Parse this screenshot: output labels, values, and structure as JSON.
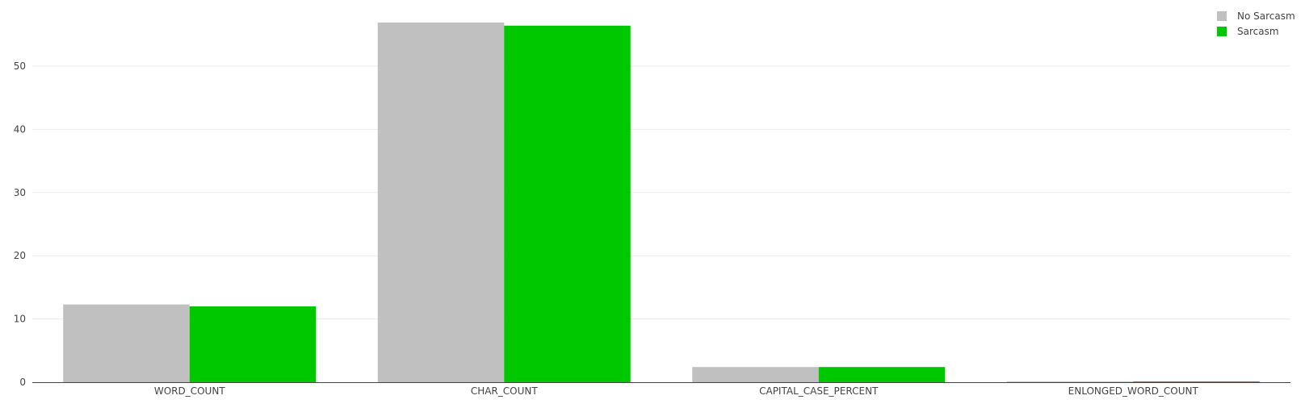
{
  "chart_data": {
    "type": "bar",
    "categories": [
      "WORD_COUNT",
      "CHAR_COUNT",
      "CAPITAL_CASE_PERCENT",
      "ENLONGED_WORD_COUNT"
    ],
    "series": [
      {
        "name": "No Sarcasm",
        "color": "#c0c0c0",
        "values": [
          12.3,
          56.9,
          2.4,
          0.05
        ]
      },
      {
        "name": "Sarcasm",
        "color": "#00c800",
        "values": [
          12.0,
          56.4,
          2.4,
          0.1
        ]
      }
    ],
    "y_ticks": [
      "0",
      "10",
      "20",
      "30",
      "40",
      "50"
    ],
    "ylim": [
      0,
      57
    ],
    "grid": true,
    "legend_position": "top-right"
  }
}
